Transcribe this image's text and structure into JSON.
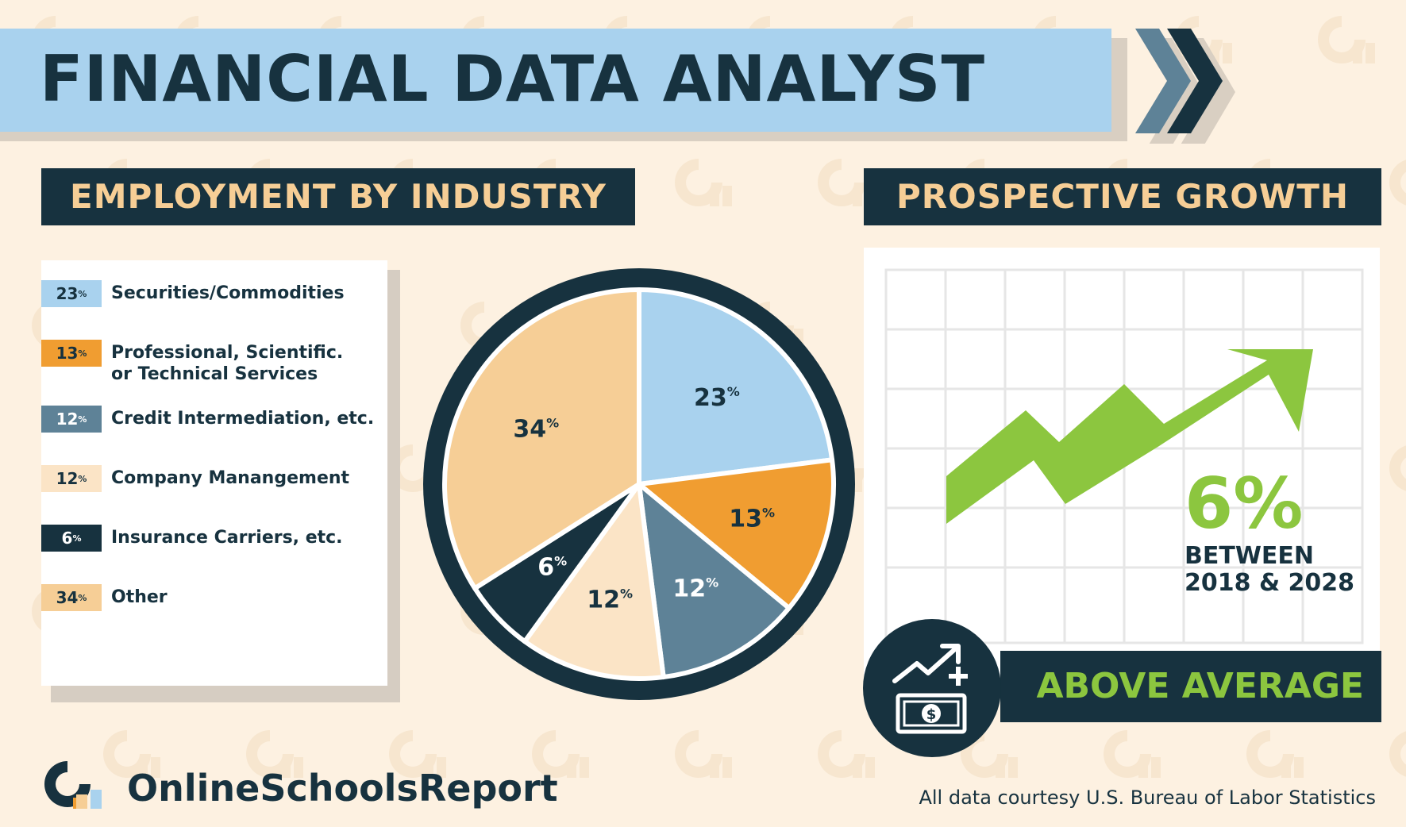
{
  "title": "FINANCIAL DATA ANALYST",
  "sections": {
    "employment_header": "EMPLOYMENT BY INDUSTRY",
    "growth_header": "PROSPECTIVE GROWTH"
  },
  "colors": {
    "navy": "#17323f",
    "light_blue": "#a9d2ee",
    "orange": "#f09d31",
    "slate": "#5e8297",
    "cream": "#fbe4c6",
    "peach": "#f6ce96",
    "green": "#8cc63f"
  },
  "chart_data": {
    "type": "pie",
    "title": "EMPLOYMENT BY INDUSTRY",
    "unit": "%",
    "categories": [
      "Securities/Commodities",
      "Professional, Scientific. or Technical Services",
      "Credit Intermediation, etc.",
      "Company Manangement",
      "Insurance Carriers, etc.",
      "Other"
    ],
    "values": [
      23,
      13,
      12,
      12,
      6,
      34
    ],
    "legend_placement": "left",
    "slices": [
      {
        "label": "Securities/Commodities",
        "value": 23,
        "value_text": "23",
        "color": "#a9d2ee",
        "text_color": "#17323f",
        "label_lines": [
          "Securities/Commodities"
        ]
      },
      {
        "label": "Professional, Scientific. or Technical Services",
        "value": 13,
        "value_text": "13",
        "color": "#f09d31",
        "text_color": "#17323f",
        "label_lines": [
          "Professional, Scientific.",
          "or Technical Services"
        ]
      },
      {
        "label": "Credit Intermediation, etc.",
        "value": 12,
        "value_text": "12",
        "color": "#5e8297",
        "text_color": "#ffffff",
        "label_lines": [
          "Credit Intermediation, etc."
        ]
      },
      {
        "label": "Company Manangement",
        "value": 12,
        "value_text": "12",
        "color": "#fbe4c6",
        "text_color": "#17323f",
        "label_lines": [
          "Company Manangement"
        ]
      },
      {
        "label": "Insurance Carriers, etc.",
        "value": 6,
        "value_text": "6",
        "color": "#17323f",
        "text_color": "#ffffff",
        "label_lines": [
          "Insurance Carriers, etc."
        ]
      },
      {
        "label": "Other",
        "value": 34,
        "value_text": "34",
        "color": "#f6ce96",
        "text_color": "#17323f",
        "label_lines": [
          "Other"
        ]
      }
    ]
  },
  "growth": {
    "value": "6%",
    "caption_line1": "BETWEEN",
    "caption_line2": "2018 & 2028",
    "rating": "ABOVE AVERAGE",
    "icons": [
      "trend-up-icon",
      "money-bill-icon"
    ]
  },
  "footer": {
    "brand": "OnlineSchoolsReport",
    "source": "All data courtesy U.S. Bureau of Labor Statistics"
  }
}
